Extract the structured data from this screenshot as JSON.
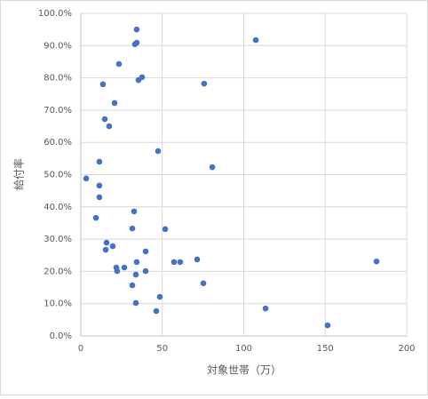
{
  "chart_data": {
    "type": "scatter",
    "x_label": "対象世帯（万）",
    "y_label": "給付率",
    "series": [
      {
        "name": null,
        "color": "#4472c4",
        "x": [
          34.3,
          33.2,
          34.3,
          107.4,
          23.4,
          13.6,
          37.6,
          35.4,
          75.7,
          20.7,
          14.7,
          17.4,
          47.4,
          80.7,
          11.4,
          3.3,
          11.4,
          11.4,
          32.7,
          9.3,
          31.6,
          51.8,
          15.8,
          39.8,
          19.6,
          15.3,
          34.3,
          71.4,
          57.2,
          61.0,
          181.5,
          21.8,
          26.7,
          22.3,
          39.8,
          33.8,
          75.2,
          31.6,
          48.5,
          33.8,
          46.3,
          113.4,
          151.5
        ],
        "values": [
          95.0,
          90.4,
          90.9,
          91.7,
          84.3,
          78.0,
          80.2,
          79.3,
          78.2,
          72.2,
          67.2,
          65.0,
          57.3,
          52.3,
          54.0,
          48.8,
          46.6,
          43.0,
          38.6,
          36.6,
          33.3,
          33.1,
          28.9,
          26.2,
          27.8,
          26.7,
          22.9,
          23.7,
          22.9,
          22.9,
          23.1,
          21.2,
          21.2,
          20.1,
          20.1,
          19.0,
          16.3,
          15.7,
          12.1,
          10.2,
          7.7,
          8.5,
          3.3
        ]
      }
    ],
    "xlim": [
      0,
      200
    ],
    "xticks": [
      0,
      50,
      100,
      150,
      200
    ],
    "ylim": [
      0,
      100
    ],
    "yticks": [
      {
        "value": 0,
        "label": "0.0%"
      },
      {
        "value": 10,
        "label": "10.0%"
      },
      {
        "value": 20,
        "label": "20.0%"
      },
      {
        "value": 30,
        "label": "30.0%"
      },
      {
        "value": 40,
        "label": "40.0%"
      },
      {
        "value": 50,
        "label": "50.0%"
      },
      {
        "value": 60,
        "label": "60.0%"
      },
      {
        "value": 70,
        "label": "70.0%"
      },
      {
        "value": 80,
        "label": "80.0%"
      },
      {
        "value": 90,
        "label": "90.0%"
      },
      {
        "value": 100,
        "label": "100.0%"
      }
    ],
    "grid": true
  }
}
